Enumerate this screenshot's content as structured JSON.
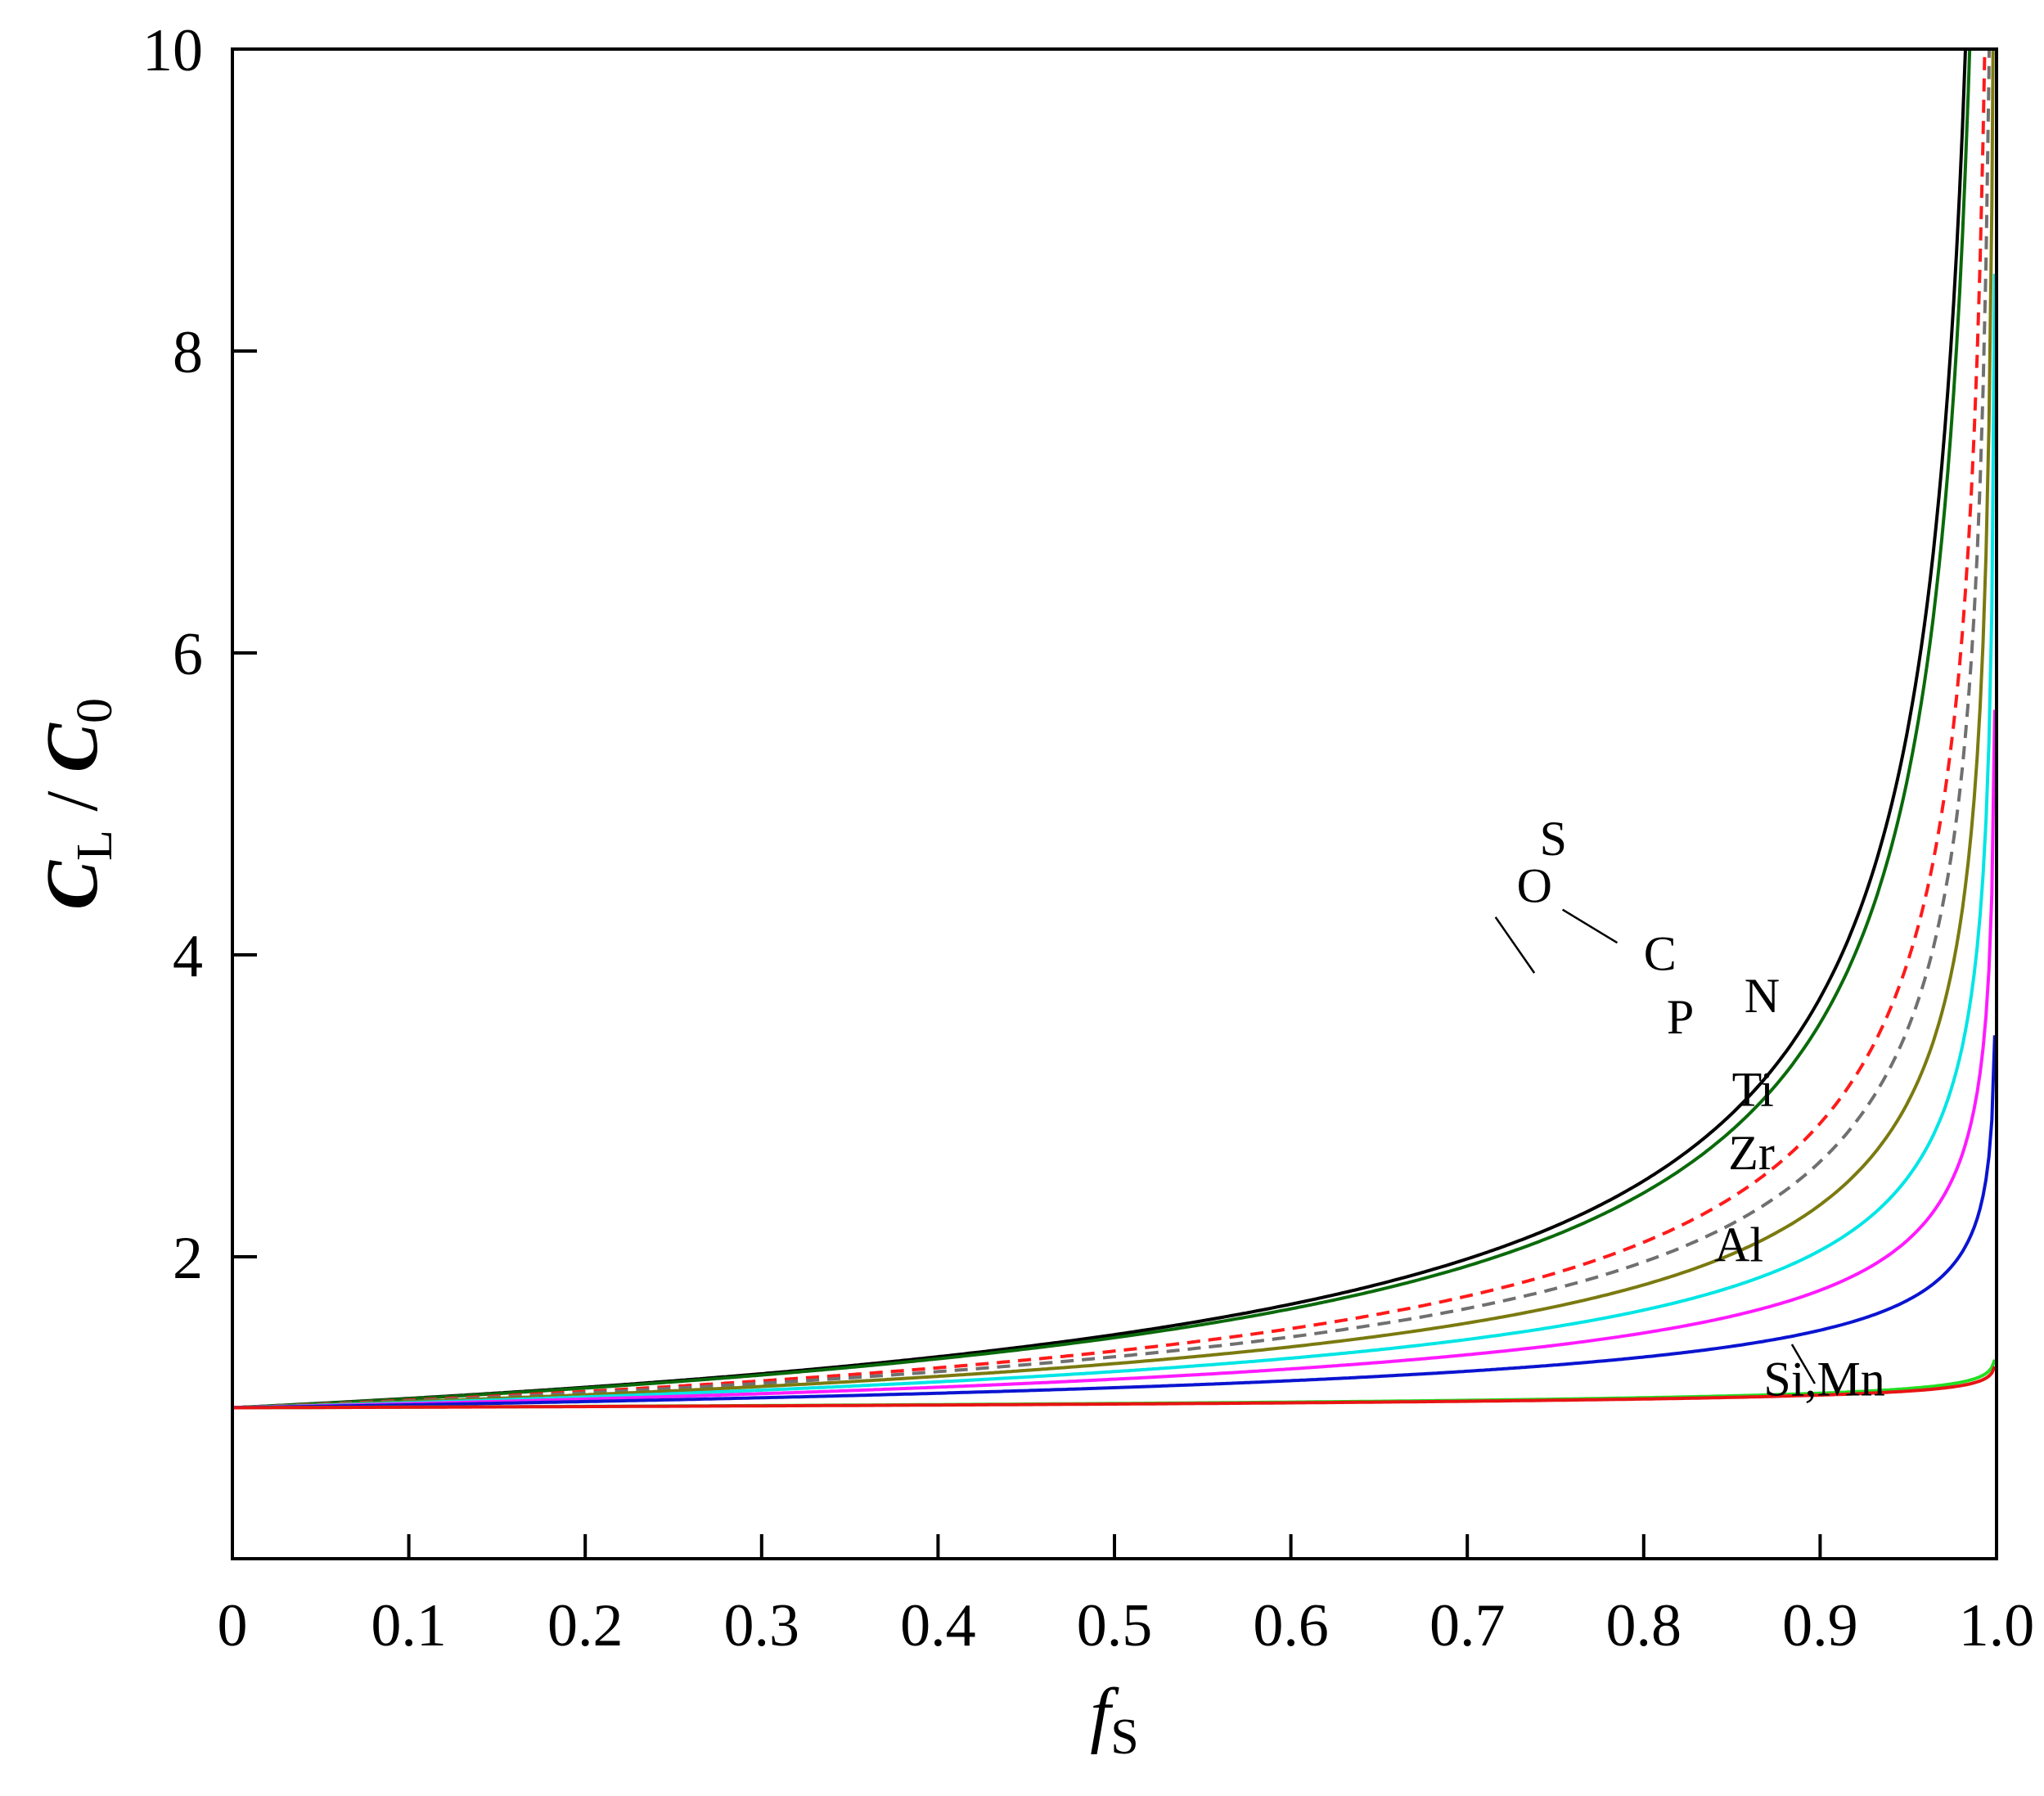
{
  "chart_data": {
    "type": "line",
    "title": "",
    "xlabel": {
      "main": "f",
      "sub": "S"
    },
    "ylabel": {
      "num": "C",
      "num_sub": "L",
      "sep": " / ",
      "den": "C",
      "den_sub": "0"
    },
    "xlim": [
      0,
      1.0
    ],
    "ylim": [
      0,
      10
    ],
    "x_ticks": [
      "0",
      "0.1",
      "0.2",
      "0.3",
      "0.4",
      "0.5",
      "0.6",
      "0.7",
      "0.8",
      "0.9",
      "1.0"
    ],
    "y_ticks": [
      "2",
      "4",
      "6",
      "8",
      "10"
    ],
    "grid": false,
    "legend": "none (inline labels)",
    "model": "C_L/C_0 = (1 - f_S)^(k - 1)",
    "series": [
      {
        "name": "O",
        "k": 0.43,
        "color": "#000000",
        "dash": "solid"
      },
      {
        "name": "S",
        "k": 0.45,
        "color": "#0a6a0a",
        "dash": "solid"
      },
      {
        "name": "C",
        "k": 0.54,
        "color": "#ff1a1a",
        "dash": "dashed"
      },
      {
        "name": "P",
        "k": 0.58,
        "color": "#707070",
        "dash": "dashed"
      },
      {
        "name": "N",
        "k": 0.63,
        "color": "#7a7a10",
        "dash": "solid"
      },
      {
        "name": "Ti",
        "k": 0.69,
        "color": "#00e5e5",
        "dash": "solid"
      },
      {
        "name": "Zr",
        "k": 0.75,
        "color": "#ff1aff",
        "dash": "solid"
      },
      {
        "name": "Al",
        "k": 0.82,
        "color": "#0a14d0",
        "dash": "solid"
      },
      {
        "name": "Si",
        "k": 0.96,
        "color": "#22e022",
        "dash": "solid"
      },
      {
        "name": "Mn",
        "k": 0.965,
        "color": "#e81414",
        "dash": "solid"
      }
    ],
    "annotations": [
      {
        "text": "O",
        "x": 0.728,
        "y": 4.35
      },
      {
        "text": "S",
        "x": 0.741,
        "y": 4.66
      },
      {
        "text": "C",
        "x": 0.8,
        "y": 3.9
      },
      {
        "text": "P",
        "x": 0.813,
        "y": 3.48
      },
      {
        "text": "N",
        "x": 0.857,
        "y": 3.62
      },
      {
        "text": "Ti",
        "x": 0.85,
        "y": 3.0
      },
      {
        "text": "Zr",
        "x": 0.848,
        "y": 2.58
      },
      {
        "text": "Al",
        "x": 0.84,
        "y": 1.97
      },
      {
        "text": "Si,Mn",
        "x": 0.868,
        "y": 1.08
      }
    ],
    "leader_lines": [
      {
        "from": [
          0.716,
          4.25
        ],
        "to": [
          0.738,
          3.88
        ]
      },
      {
        "from": [
          0.754,
          4.3
        ],
        "to": [
          0.785,
          4.08
        ]
      },
      {
        "from": [
          0.897,
          1.16
        ],
        "to": [
          0.884,
          1.42
        ]
      }
    ]
  }
}
